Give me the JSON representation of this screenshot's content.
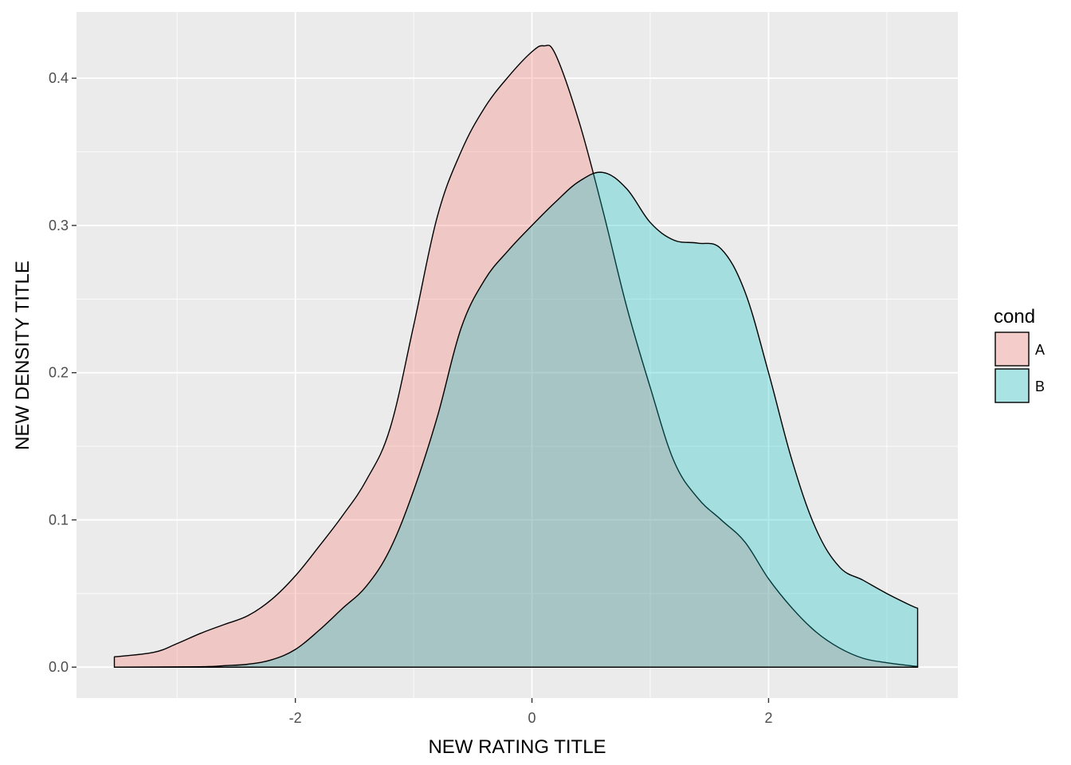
{
  "chart_data": {
    "type": "area",
    "subtype": "density",
    "xlabel": "NEW RATING TITLE",
    "ylabel": "NEW DENSITY TITLE",
    "xlim": [
      -3.85,
      3.6
    ],
    "ylim": [
      -0.021,
      0.445
    ],
    "x_ticks": [
      -2,
      0,
      2
    ],
    "x_tick_labels": [
      "-2",
      "0",
      "2"
    ],
    "y_ticks": [
      0.0,
      0.1,
      0.2,
      0.3,
      0.4
    ],
    "y_tick_labels": [
      "0.0",
      "0.1",
      "0.2",
      "0.3",
      "0.4"
    ],
    "grid": true,
    "legend": {
      "title": "cond",
      "position": "right",
      "entries": [
        "A",
        "B"
      ]
    },
    "series": [
      {
        "name": "A",
        "color": "#F8766D",
        "alpha": 0.3,
        "x": [
          -3.53,
          -3.2,
          -3.0,
          -2.8,
          -2.6,
          -2.4,
          -2.2,
          -2.0,
          -1.8,
          -1.6,
          -1.4,
          -1.2,
          -1.0,
          -0.8,
          -0.6,
          -0.4,
          -0.2,
          0.0,
          0.1,
          0.2,
          0.4,
          0.6,
          0.8,
          1.0,
          1.2,
          1.4,
          1.6,
          1.8,
          2.0,
          2.2,
          2.4,
          2.6,
          2.8,
          3.0,
          3.2,
          3.26
        ],
        "y": [
          0.007,
          0.01,
          0.016,
          0.023,
          0.029,
          0.035,
          0.046,
          0.062,
          0.082,
          0.103,
          0.127,
          0.162,
          0.232,
          0.306,
          0.35,
          0.38,
          0.401,
          0.418,
          0.422,
          0.416,
          0.37,
          0.31,
          0.245,
          0.19,
          0.14,
          0.115,
          0.1,
          0.085,
          0.06,
          0.04,
          0.024,
          0.013,
          0.006,
          0.003,
          0.001,
          0.0005
        ]
      },
      {
        "name": "B",
        "color": "#00BFC4",
        "alpha": 0.3,
        "x": [
          -3.53,
          -2.8,
          -2.6,
          -2.4,
          -2.2,
          -2.0,
          -1.8,
          -1.6,
          -1.4,
          -1.2,
          -1.0,
          -0.8,
          -0.6,
          -0.4,
          -0.2,
          0.0,
          0.2,
          0.4,
          0.6,
          0.8,
          1.0,
          1.2,
          1.4,
          1.6,
          1.8,
          2.0,
          2.2,
          2.4,
          2.6,
          2.8,
          3.0,
          3.2,
          3.26
        ],
        "y": [
          0.0,
          0.0003,
          0.001,
          0.002,
          0.005,
          0.012,
          0.025,
          0.04,
          0.055,
          0.08,
          0.12,
          0.17,
          0.23,
          0.263,
          0.283,
          0.3,
          0.316,
          0.33,
          0.336,
          0.325,
          0.302,
          0.29,
          0.288,
          0.284,
          0.255,
          0.2,
          0.14,
          0.094,
          0.068,
          0.059,
          0.05,
          0.042,
          0.04
        ]
      }
    ]
  }
}
